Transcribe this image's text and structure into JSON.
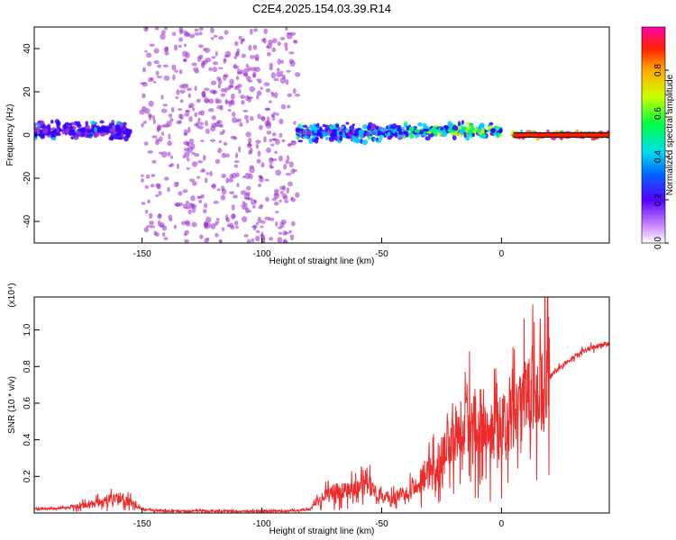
{
  "title": "C2E4.2025.154.03.39.R14",
  "colors": {
    "spectrogram_scatter": "#8a3cf0",
    "spectrogram_core": "#3a00e0",
    "line_series": "#ee2a2a",
    "axis": "#000000"
  },
  "chart_data": [
    {
      "type": "heatmap",
      "xlabel": "Height of straight line (km)",
      "ylabel": "Frequency (Hz)",
      "xlim": [
        -195,
        45
      ],
      "ylim": [
        -50,
        50
      ],
      "x_ticks": [
        -150,
        -100,
        -50,
        0
      ],
      "y_ticks": [
        -40,
        -20,
        0,
        20,
        40
      ],
      "colorbar": {
        "label": "Normalized spectral amplitude",
        "range": [
          0,
          1
        ],
        "ticks": [
          "0.0",
          "0.2",
          "0.4",
          "0.6",
          "0.8"
        ],
        "colormap": [
          "#ffffff",
          "#9932cc",
          "#3300ff",
          "#00ccff",
          "#00ff66",
          "#ccff00",
          "#ffaa00",
          "#ff2200",
          "#ff00aa"
        ]
      },
      "bands": [
        {
          "x_from": -195,
          "x_to": -155,
          "f_center": 2,
          "f_halfwidth": 5,
          "amplitude": 0.25
        },
        {
          "x_from": -150,
          "x_to": -85,
          "f_center": 0,
          "f_halfwidth": 50,
          "amplitude": 0.12
        },
        {
          "x_from": -85,
          "x_to": -40,
          "f_center": 1,
          "f_halfwidth": 5,
          "amplitude": 0.35
        },
        {
          "x_from": -40,
          "x_to": 0,
          "f_center": 2,
          "f_halfwidth": 4,
          "amplitude": 0.5
        },
        {
          "x_from": 5,
          "x_to": 45,
          "f_center": 0,
          "f_halfwidth": 1.5,
          "amplitude": 0.95
        }
      ]
    },
    {
      "type": "line",
      "xlabel": "Height of straight line (km)",
      "ylabel": "SNR (10 * v/v)",
      "y_scale_note": "(x10⁴)",
      "xlim": [
        -195,
        45
      ],
      "ylim": [
        0,
        1.18
      ],
      "x_ticks": [
        -150,
        -100,
        -50,
        0
      ],
      "y_ticks": [
        0.2,
        0.4,
        0.6,
        0.8,
        1.0
      ],
      "series": [
        {
          "x": [
            -195,
            -180,
            -170,
            -165,
            -160,
            -155,
            -150,
            -140,
            -120,
            -100,
            -90,
            -80,
            -75,
            -70,
            -60,
            -55,
            -50,
            -45,
            -40,
            -35,
            -30,
            -25,
            -20,
            -15,
            -10,
            -5,
            0,
            5,
            10,
            15,
            20,
            25,
            30,
            35,
            40,
            45
          ],
          "values": [
            0.02,
            0.03,
            0.05,
            0.07,
            0.08,
            0.06,
            0.02,
            0.01,
            0.01,
            0.01,
            0.01,
            0.02,
            0.08,
            0.12,
            0.13,
            0.15,
            0.09,
            0.08,
            0.12,
            0.16,
            0.22,
            0.3,
            0.45,
            0.52,
            0.5,
            0.48,
            0.46,
            0.52,
            0.6,
            0.66,
            0.74,
            0.8,
            0.85,
            0.89,
            0.91,
            0.93
          ]
        }
      ]
    }
  ]
}
